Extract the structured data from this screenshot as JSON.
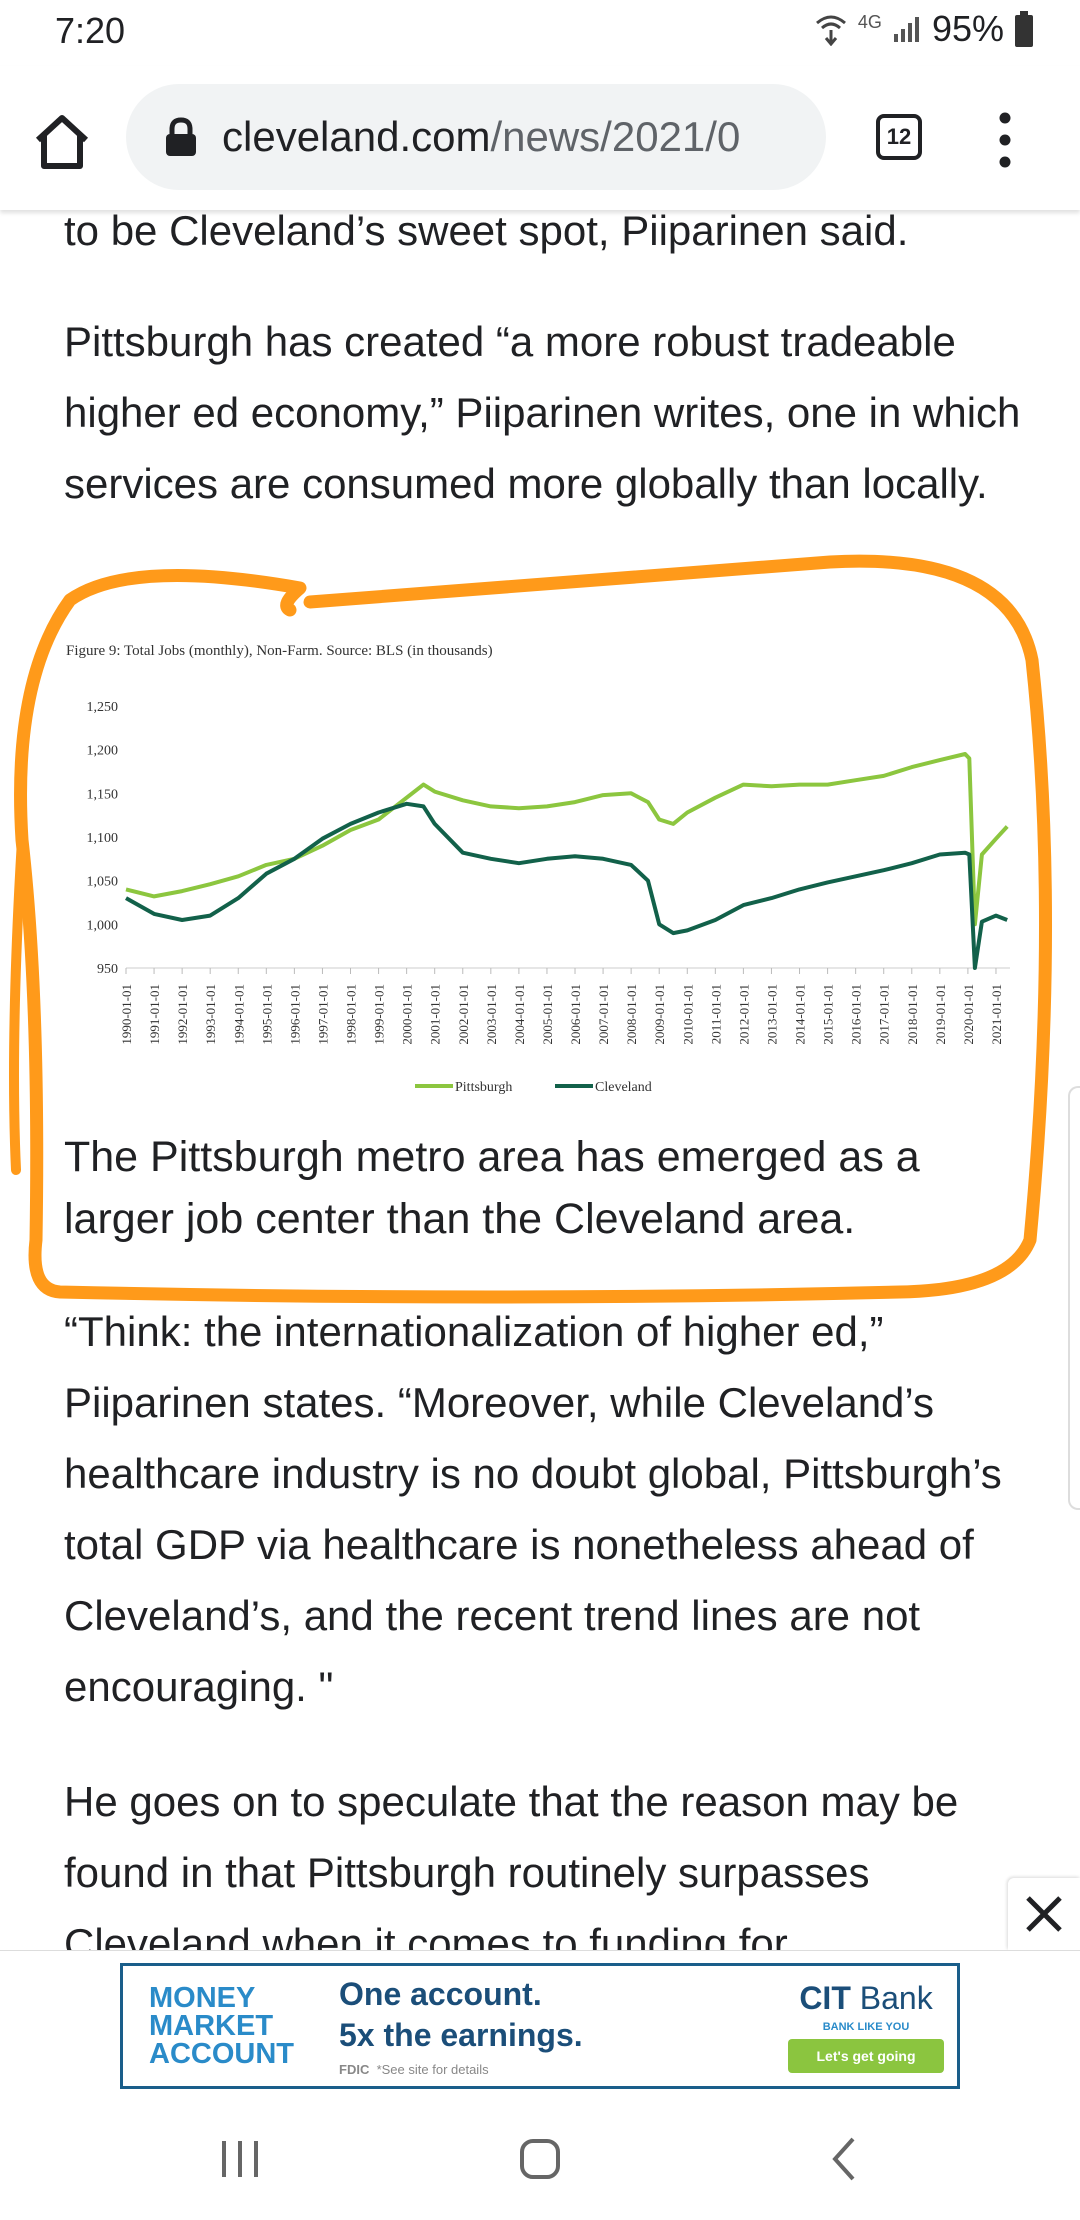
{
  "status": {
    "time": "7:20",
    "network": "4G",
    "battery": "95%"
  },
  "browser": {
    "url_domain": "cleveland.com",
    "url_path": "/news/2021/0",
    "tab_count": "12",
    "icons": [
      "home-icon",
      "lock-icon",
      "tabs-icon",
      "more-vert-icon"
    ]
  },
  "article": {
    "para_top": "to be Cleveland’s sweet spot, Piiparinen said.",
    "para_1": "Pittsburgh has created “a more robust tradeable higher ed economy,” Piiparinen writes, one in which services are consumed more globally than locally.",
    "caption": "The Pittsburgh metro area has emerged as a larger job center than the Cleveland area.",
    "para_2": "“Think: the internationalization of higher ed,” Piiparinen states. “Moreover, while Cleveland’s healthcare industry is no doubt global, Pittsburgh’s total GDP via healthcare is nonetheless ahead of Cleveland’s, and the recent trend lines are not encouraging. \"",
    "para_3": "He goes on to speculate that the reason may be found in that Pittsburgh routinely surpasses Cleveland when it comes to funding for"
  },
  "chart_data": {
    "type": "line",
    "title": "Figure 9: Total Jobs (monthly), Non-Farm. Source: BLS (in thousands)",
    "xlabel": "",
    "ylabel": "",
    "ylim": [
      950,
      1250
    ],
    "yticks": [
      "1,250",
      "1,200",
      "1,150",
      "1,100",
      "1,050",
      "1,000",
      "950"
    ],
    "categories": [
      "1990-01-01",
      "1991-01-01",
      "1992-01-01",
      "1993-01-01",
      "1994-01-01",
      "1995-01-01",
      "1996-01-01",
      "1997-01-01",
      "1998-01-01",
      "1999-01-01",
      "2000-01-01",
      "2001-01-01",
      "2002-01-01",
      "2003-01-01",
      "2004-01-01",
      "2005-01-01",
      "2006-01-01",
      "2007-01-01",
      "2008-01-01",
      "2009-01-01",
      "2010-01-01",
      "2011-01-01",
      "2012-01-01",
      "2013-01-01",
      "2014-01-01",
      "2015-01-01",
      "2016-01-01",
      "2017-01-01",
      "2018-01-01",
      "2019-01-01",
      "2020-01-01",
      "2021-01-01"
    ],
    "x": [
      1990,
      1991,
      1992,
      1993,
      1994,
      1995,
      1996,
      1997,
      1998,
      1999,
      2000,
      2000.6,
      2001,
      2002,
      2003,
      2004,
      2005,
      2006,
      2007,
      2008,
      2008.6,
      2009,
      2009.5,
      2010,
      2011,
      2012,
      2013,
      2014,
      2015,
      2016,
      2017,
      2018,
      2019,
      2019.9,
      2020.05,
      2020.25,
      2020.5,
      2021,
      2021.4
    ],
    "series": [
      {
        "name": "Pittsburgh",
        "color": "#8cc63f",
        "values": [
          1040,
          1032,
          1038,
          1046,
          1055,
          1068,
          1075,
          1090,
          1108,
          1120,
          1145,
          1160,
          1152,
          1142,
          1135,
          1133,
          1135,
          1140,
          1148,
          1150,
          1140,
          1120,
          1115,
          1128,
          1145,
          1160,
          1158,
          1160,
          1160,
          1165,
          1170,
          1180,
          1188,
          1195,
          1190,
          1000,
          1080,
          1098,
          1112
        ]
      },
      {
        "name": "Cleveland",
        "color": "#12614a",
        "values": [
          1030,
          1012,
          1005,
          1010,
          1030,
          1058,
          1075,
          1098,
          1115,
          1128,
          1138,
          1135,
          1115,
          1082,
          1075,
          1070,
          1075,
          1078,
          1075,
          1068,
          1050,
          1000,
          990,
          993,
          1005,
          1022,
          1030,
          1040,
          1048,
          1055,
          1062,
          1070,
          1080,
          1082,
          1080,
          950,
          1003,
          1010,
          1005
        ]
      }
    ],
    "legend": [
      "Pittsburgh",
      "Cleveland"
    ],
    "legend_position": "bottom-center",
    "grid": false
  },
  "ad": {
    "left_lines": [
      "MONEY",
      "MARKET",
      "ACCOUNT"
    ],
    "headline_1": "One account.",
    "headline_2": "5x the earnings.",
    "fine_print": "*See site for details",
    "fdic": "FDIC",
    "brand": "CIT",
    "brand_suffix": "Bank",
    "tagline": "BANK LIKE YOU",
    "cta": "Let's get going",
    "close_icon": "close-icon"
  },
  "navbar": {
    "icons": [
      "recents-icon",
      "home-nav-icon",
      "back-icon"
    ]
  },
  "annotation": {
    "color": "#ff9a1a"
  }
}
